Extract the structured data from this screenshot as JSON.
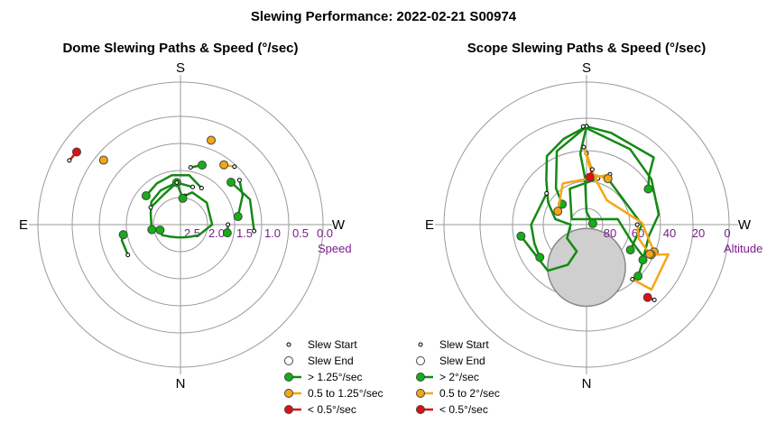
{
  "title": "Slewing Performance: 2022-02-21 S00974",
  "colors": {
    "fast": "#13b013",
    "fast_line": "#138a13",
    "medium": "#f5a615",
    "slow": "#dd1111",
    "tick": "#7a1d8a",
    "ring": "#9a9a9a"
  },
  "chart_data": [
    {
      "type": "polar",
      "title": "Dome Slewing Paths & Speed (°/sec)",
      "directions": {
        "top": "S",
        "bottom": "N",
        "left": "E",
        "right": "W"
      },
      "radial_axis_label": "Speed",
      "radial_ticks": [
        "2.5",
        "2.0",
        "1.5",
        "1.0",
        "0.5",
        "0.0"
      ],
      "legend": [
        "Slew Start",
        "Slew End",
        "> 1.25°/sec",
        "0.5 to 1.25°/sec",
        "< 0.5°/sec"
      ],
      "segments": [
        {
          "category": "fast",
          "points": [
            [
              198,
              1.95
            ],
            [
              175,
              1.9
            ],
            [
              150,
              1.95
            ],
            [
              128,
              2.0
            ],
            [
              110,
              2.1
            ],
            [
              90,
              2.15
            ],
            [
              80,
              2.15
            ]
          ]
        },
        {
          "category": "fast",
          "points": [
            [
              210,
              1.9
            ],
            [
              190,
              1.75
            ],
            [
              170,
              1.75
            ],
            [
              150,
              1.8
            ],
            [
              130,
              1.85
            ]
          ]
        },
        {
          "category": "fast",
          "points": [
            [
              188,
              2.15
            ],
            [
              200,
              2.05
            ],
            [
              230,
              2.05
            ],
            [
              270,
              2.1
            ],
            [
              300,
              2.3
            ],
            [
              320,
              2.4
            ],
            [
              345,
              2.45
            ],
            [
              15,
              2.45
            ],
            [
              40,
              2.4
            ],
            [
              60,
              2.3
            ],
            [
              75,
              2.3
            ]
          ]
        },
        {
          "category": "fast",
          "points": [
            [
              120,
              2.05
            ],
            [
              150,
              2.05
            ],
            [
              175,
              1.9
            ]
          ]
        },
        {
          "category": "fast",
          "points": [
            [
              60,
              1.55
            ],
            [
              75,
              1.55
            ],
            [
              80,
              1.6
            ]
          ]
        },
        {
          "category": "fast",
          "points": [
            [
              190,
              1.6
            ],
            [
              200,
              1.5
            ]
          ]
        },
        {
          "category": "fast",
          "points": [
            [
              270,
              1.8
            ],
            [
              280,
              1.8
            ]
          ]
        },
        {
          "category": "fast",
          "points": [
            [
              233,
              1.3
            ],
            [
              245,
              1.4
            ],
            [
              262,
              1.6
            ]
          ]
        },
        {
          "category": "fast",
          "points": [
            [
              175,
              1.9
            ],
            [
              185,
              2.2
            ]
          ]
        },
        {
          "category": "medium",
          "points": [
            [
              223,
              1.2
            ],
            [
              216,
              1.3
            ]
          ]
        },
        {
          "category": "medium",
          "points": [
            [
              200,
              1.0
            ]
          ]
        },
        {
          "category": "medium",
          "points": [
            [
              130,
              0.8
            ]
          ]
        },
        {
          "category": "slow",
          "points": [
            [
              120,
              0.27
            ],
            [
              125,
              0.3
            ]
          ]
        },
        {
          "category": "fast",
          "points": [
            [
              275,
              1.3
            ],
            [
              250,
              1.3
            ],
            [
              230,
              1.45
            ]
          ]
        }
      ]
    },
    {
      "type": "polar",
      "title": "Scope Slewing Paths & Speed (°/sec)",
      "directions": {
        "top": "S",
        "bottom": "N",
        "left": "E",
        "right": "W"
      },
      "radial_axis_label": "Altitude",
      "radial_ticks": [
        "80",
        "60",
        "40",
        "20",
        "0"
      ],
      "legend": [
        "Slew Start",
        "Slew End",
        "> 2°/sec",
        "0.5 to 2°/sec",
        "< 0.5°/sec"
      ],
      "moon_zone": {
        "azimuth": 0,
        "altitude": 63,
        "radius_deg": 20
      },
      "segments": [
        {
          "category": "fast",
          "points": [
            [
              180,
              28
            ],
            [
              195,
              30
            ],
            [
              225,
              30
            ],
            [
              232,
              40
            ],
            [
              240,
              45
            ]
          ]
        },
        {
          "category": "fast",
          "points": [
            [
              180,
              28
            ],
            [
              165,
              34
            ],
            [
              150,
              40
            ],
            [
              138,
              52
            ],
            [
              120,
              62
            ],
            [
              100,
              70
            ],
            [
              90,
              80
            ],
            [
              55,
              75
            ],
            [
              20,
              72
            ],
            [
              25,
              62
            ],
            [
              40,
              52
            ],
            [
              80,
              48
            ]
          ]
        },
        {
          "category": "fast",
          "points": [
            [
              180,
              28
            ],
            [
              158,
              40
            ],
            [
              140,
              60
            ],
            [
              130,
              70
            ]
          ]
        },
        {
          "category": "fast",
          "points": [
            [
              180,
              28
            ],
            [
              175,
              45
            ],
            [
              178,
              60
            ],
            [
              180,
              82
            ],
            [
              260,
              86
            ]
          ]
        },
        {
          "category": "fast",
          "points": [
            [
              194,
              60
            ],
            [
              155,
              65
            ],
            [
              110,
              80
            ],
            [
              260,
              70
            ],
            [
              290,
              60
            ],
            [
              300,
              48
            ],
            [
              315,
              44
            ]
          ]
        },
        {
          "category": "fast",
          "points": [
            [
              205,
              58
            ],
            [
              270,
              55
            ],
            [
              300,
              58
            ]
          ]
        },
        {
          "category": "fast",
          "points": [
            [
              128,
              58
            ],
            [
              90,
              55
            ],
            [
              70,
              55
            ],
            [
              55,
              54
            ]
          ]
        },
        {
          "category": "fast",
          "points": [
            [
              178,
              28
            ],
            [
              210,
              35
            ],
            [
              235,
              40
            ],
            [
              262,
              44
            ],
            [
              280,
              50
            ],
            [
              302,
              48
            ]
          ]
        },
        {
          "category": "medium",
          "points": [
            [
              180,
              45
            ],
            [
              190,
              60
            ],
            [
              220,
              70
            ],
            [
              268,
              55
            ],
            [
              292,
              44
            ]
          ]
        },
        {
          "category": "medium",
          "points": [
            [
              205,
              55
            ],
            [
              150,
              60
            ],
            [
              115,
              70
            ]
          ]
        },
        {
          "category": "medium",
          "points": [
            [
              320,
              45
            ],
            [
              315,
              32
            ],
            [
              290,
              35
            ],
            [
              295,
              45
            ]
          ]
        },
        {
          "category": "medium",
          "points": [
            [
              178,
              41
            ],
            [
              186,
              58
            ],
            [
              205,
              58
            ]
          ]
        },
        {
          "category": "medium",
          "points": [
            [
              270,
              58
            ],
            [
              285,
              56
            ],
            [
              295,
              46
            ]
          ]
        },
        {
          "category": "slow",
          "points": [
            [
              186,
              55
            ],
            [
              184,
              60
            ]
          ]
        },
        {
          "category": "slow",
          "points": [
            [
              318,
              26
            ],
            [
              320,
              30
            ]
          ]
        }
      ]
    }
  ]
}
